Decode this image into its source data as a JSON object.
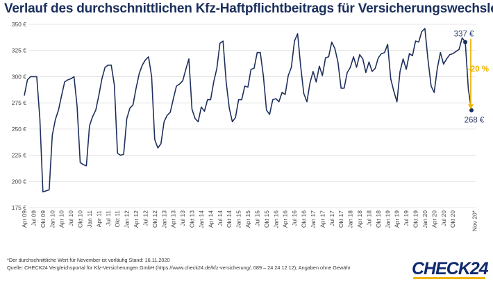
{
  "title": "Verlauf des durchschnittlichen Kfz-Haftpflichtbeitrags für Versicherungswechsler",
  "footnotes": [
    "*Der durchschnittliche Wert für November ist vorläufig Stand: 16.11.2020",
    "Quelle: CHECK24 Vergleichsportal für Kfz-Versicherungen GmbH (https://www.check24.de/kfz-versicherung/; 089 – 24 24 12 12); Angaben ohne Gewähr"
  ],
  "logo": {
    "text": "CHECK",
    "number": "24"
  },
  "colors": {
    "line": "#1d2f5c",
    "accent": "#f0b400",
    "grid": "#dcdcdc"
  },
  "chart_data": {
    "type": "line",
    "title": "Verlauf des durchschnittlichen Kfz-Haftpflichtbeitrags für Versicherungswechsler",
    "ylim": [
      175,
      350
    ],
    "yticks": [
      175,
      200,
      225,
      250,
      275,
      300,
      325,
      350
    ],
    "ytick_labels": [
      "175 €",
      "200 €",
      "225 €",
      "250 €",
      "275 €",
      "300 €",
      "325 €",
      "350 €"
    ],
    "grid": true,
    "x_start": "Apr 09",
    "xtick_labels": [
      "Apr 09",
      "Jul 09",
      "Okt 09",
      "Jan 10",
      "Apr 10",
      "Jul 10",
      "Okt 10",
      "Jan 11",
      "Apr 11",
      "Jul 11",
      "Okt 11",
      "Jan 12",
      "Apr 12",
      "Jul 12",
      "Okt 12",
      "Jan 13",
      "Apr 13",
      "Jul 13",
      "Okt 13",
      "Jan 14",
      "Apr 14",
      "Jul 14",
      "Okt 14",
      "Jan 15",
      "Apr 15",
      "Jul 15",
      "Okt 15",
      "Jan 16",
      "Apr 16",
      "Jul 16",
      "Okt 16",
      "Jan 17",
      "Apr 17",
      "Jul 17",
      "Okt 17",
      "Jan 18",
      "Apr 18",
      "Jul 18",
      "Okt 18",
      "Jan 19",
      "Apr 19",
      "Jul 19",
      "Okt 19",
      "Jan 20",
      "Apr 20",
      "Jul 20",
      "Okt 20",
      "Nov 20*"
    ],
    "values": [
      282,
      297,
      300,
      300,
      300,
      260,
      190,
      191,
      192,
      244,
      259,
      268,
      282,
      295,
      297,
      298,
      300,
      272,
      218,
      216,
      215,
      253,
      262,
      268,
      282,
      298,
      309,
      311,
      311,
      292,
      227,
      225,
      226,
      260,
      270,
      273,
      289,
      303,
      311,
      316,
      319,
      300,
      240,
      232,
      236,
      257,
      263,
      266,
      279,
      291,
      293,
      296,
      307,
      317,
      269,
      260,
      257,
      271,
      267,
      278,
      278,
      295,
      308,
      332,
      334,
      295,
      270,
      257,
      261,
      278,
      278,
      291,
      290,
      307,
      308,
      323,
      323,
      300,
      268,
      264,
      278,
      279,
      276,
      285,
      283,
      301,
      309,
      334,
      341,
      310,
      284,
      276,
      294,
      305,
      295,
      310,
      301,
      318,
      319,
      333,
      327,
      314,
      289,
      289,
      304,
      309,
      319,
      309,
      321,
      317,
      304,
      314,
      305,
      308,
      318,
      322,
      323,
      331,
      298,
      286,
      276,
      305,
      317,
      307,
      322,
      320,
      334,
      333,
      343,
      346,
      316,
      291,
      285,
      308,
      323,
      312,
      317,
      321,
      322,
      324,
      326,
      337,
      333,
      288,
      268
    ],
    "annotations": [
      {
        "text": "337 €",
        "value": 337
      },
      {
        "text": "268 €",
        "value": 268
      },
      {
        "text": "-20 %"
      }
    ]
  }
}
